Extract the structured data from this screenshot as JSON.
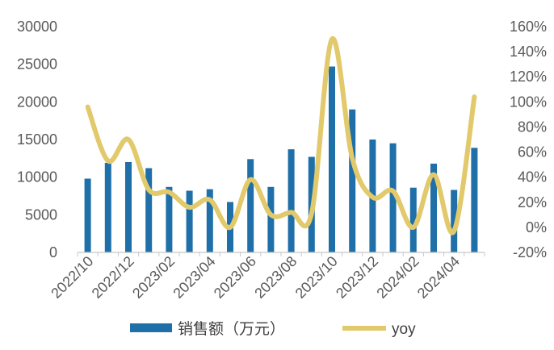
{
  "chart_data": {
    "type": "bar+line",
    "categories": [
      "2022/10",
      "2022/11",
      "2022/12",
      "2023/01",
      "2023/02",
      "2023/03",
      "2023/04",
      "2023/05",
      "2023/06",
      "2023/07",
      "2023/08",
      "2023/09",
      "2023/10",
      "2023/11",
      "2023/12",
      "2024/01",
      "2024/02",
      "2024/03",
      "2024/04",
      "2024/05"
    ],
    "x_tick_labels": [
      "2022/10",
      "2022/12",
      "2023/02",
      "2023/04",
      "2023/06",
      "2023/08",
      "2023/10",
      "2023/12",
      "2024/02",
      "2024/04"
    ],
    "series": [
      {
        "name": "销售额（万元）",
        "type": "bar",
        "axis": "left",
        "color": "#1f6fa8",
        "values": [
          9800,
          11900,
          12000,
          11200,
          8700,
          8200,
          8400,
          6700,
          12400,
          8700,
          13700,
          12700,
          24700,
          19000,
          15000,
          14500,
          8600,
          11800,
          8300,
          13900
        ]
      },
      {
        "name": "yoy",
        "type": "line",
        "axis": "right",
        "color": "#e2c96b",
        "values": [
          96,
          53,
          70,
          30,
          28,
          16,
          22,
          0,
          38,
          10,
          12,
          11,
          150,
          55,
          24,
          29,
          0,
          42,
          -3,
          104
        ]
      }
    ],
    "y_left": {
      "min": 0,
      "max": 30000,
      "ticks": [
        0,
        5000,
        10000,
        15000,
        20000,
        25000,
        30000
      ]
    },
    "y_right": {
      "min": -20,
      "max": 160,
      "ticks": [
        "-20%",
        "0%",
        "20%",
        "40%",
        "60%",
        "80%",
        "100%",
        "120%",
        "140%",
        "160%"
      ]
    },
    "legend": {
      "position": "bottom",
      "bar_label": "销售额（万元）",
      "line_label": "yoy"
    },
    "title": "",
    "grid": false
  }
}
